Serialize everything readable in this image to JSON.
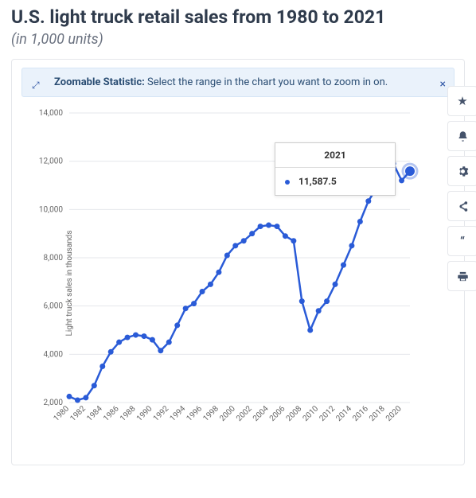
{
  "header": {
    "title": "U.S. light truck retail sales from 1980 to 2021",
    "subtitle": "(in 1,000 units)"
  },
  "info_banner": {
    "label": "Zoomable Statistic:",
    "text": " Select the range in the chart you want to zoom in on."
  },
  "tooltip": {
    "year": "2021",
    "value_label": "11,587.5"
  },
  "chart": {
    "type": "line",
    "y_axis_title": "Light truck sales in thousands",
    "ylim": [
      2000,
      14000
    ],
    "ytick_step": 2000,
    "yticks": [
      2000,
      4000,
      6000,
      8000,
      10000,
      12000,
      14000
    ],
    "ytick_labels": [
      "2,000",
      "4,000",
      "6,000",
      "8,000",
      "10,000",
      "12,000",
      "14,000"
    ],
    "x_years": [
      1980,
      1981,
      1982,
      1983,
      1984,
      1985,
      1986,
      1987,
      1988,
      1989,
      1990,
      1991,
      1992,
      1993,
      1994,
      1995,
      1996,
      1997,
      1998,
      1999,
      2000,
      2001,
      2002,
      2003,
      2004,
      2005,
      2006,
      2007,
      2008,
      2009,
      2010,
      2011,
      2012,
      2013,
      2014,
      2015,
      2016,
      2017,
      2018,
      2019,
      2020,
      2021
    ],
    "x_tick_years": [
      1980,
      1982,
      1984,
      1986,
      1988,
      1990,
      1992,
      1994,
      1996,
      1998,
      2000,
      2002,
      2004,
      2006,
      2008,
      2010,
      2012,
      2014,
      2016,
      2018,
      2020
    ],
    "values": [
      2250,
      2100,
      2200,
      2700,
      3500,
      4100,
      4500,
      4700,
      4800,
      4750,
      4600,
      4150,
      4500,
      5200,
      5900,
      6100,
      6600,
      6900,
      7400,
      8100,
      8500,
      8700,
      9000,
      9300,
      9350,
      9300,
      8900,
      8700,
      6200,
      5000,
      5800,
      6200,
      6900,
      7700,
      8500,
      9500,
      10350,
      10900,
      11300,
      11900,
      11200,
      11587.5
    ],
    "line_color": "#2a5bd7",
    "marker_color": "#2a5bd7",
    "marker_radius": 3.5,
    "grid_color": "#e5e7eb",
    "background_color": "#ffffff",
    "axis_label_fontsize": 10,
    "line_width": 2.5,
    "highlight_last_radius": 6
  },
  "toolbar": {
    "items": [
      {
        "name": "favorite",
        "icon": "star"
      },
      {
        "name": "alert",
        "icon": "bell"
      },
      {
        "name": "settings",
        "icon": "gear"
      },
      {
        "name": "share",
        "icon": "share"
      },
      {
        "name": "cite",
        "icon": "quote"
      },
      {
        "name": "print",
        "icon": "print"
      }
    ]
  }
}
